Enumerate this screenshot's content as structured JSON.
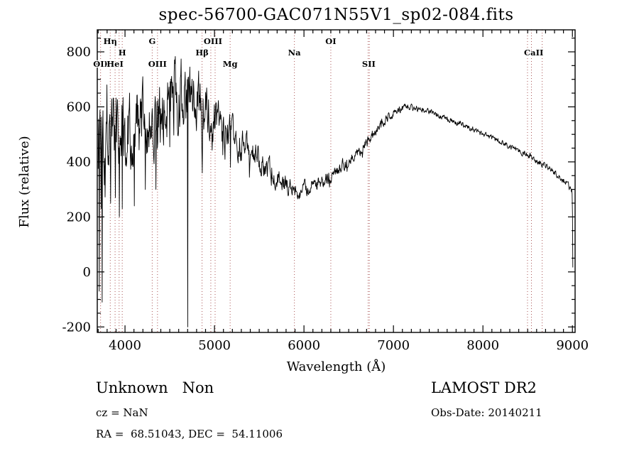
{
  "figure": {
    "title": "spec-56700-GAC071N55V1_sp02-084.fits",
    "xlabel": "Wavelength (Å)",
    "ylabel": "Flux (relative)",
    "annotations": {
      "class_label": "Unknown   Non",
      "survey": "LAMOST DR2",
      "cz": "cz = NaN",
      "obs_date": "Obs-Date: 20140211",
      "radec": "RA =  68.51043, DEC =  54.11006"
    }
  },
  "chart_data": {
    "type": "line",
    "title": "spec-56700-GAC071N55V1_sp02-084.fits",
    "xlabel": "Wavelength (Å)",
    "ylabel": "Flux (relative)",
    "xlim": [
      3690,
      9030
    ],
    "ylim": [
      -220,
      880
    ],
    "x_ticks": [
      4000,
      5000,
      6000,
      7000,
      8000,
      9000
    ],
    "y_ticks": [
      -200,
      0,
      200,
      400,
      600,
      800
    ],
    "x_minor_step": 100,
    "y_minor_step": 50,
    "grid": false,
    "line_color": "#000000",
    "marker_line_color": "#aa5555",
    "wave_start": 3700,
    "wave_end": 9005,
    "samples": 1300,
    "noise_seed": 1337,
    "continuum": [
      [
        3690,
        480
      ],
      [
        3720,
        520
      ],
      [
        3760,
        545
      ],
      [
        3850,
        555
      ],
      [
        3950,
        550
      ],
      [
        4050,
        535
      ],
      [
        4150,
        530
      ],
      [
        4250,
        545
      ],
      [
        4350,
        570
      ],
      [
        4450,
        610
      ],
      [
        4550,
        645
      ],
      [
        4650,
        660
      ],
      [
        4750,
        645
      ],
      [
        4850,
        610
      ],
      [
        4950,
        570
      ],
      [
        5050,
        535
      ],
      [
        5150,
        505
      ],
      [
        5250,
        475
      ],
      [
        5350,
        450
      ],
      [
        5450,
        420
      ],
      [
        5550,
        395
      ],
      [
        5650,
        360
      ],
      [
        5750,
        330
      ],
      [
        5850,
        305
      ],
      [
        5950,
        295
      ],
      [
        6050,
        305
      ],
      [
        6150,
        322
      ],
      [
        6250,
        342
      ],
      [
        6350,
        362
      ],
      [
        6450,
        390
      ],
      [
        6550,
        420
      ],
      [
        6650,
        455
      ],
      [
        6750,
        495
      ],
      [
        6850,
        535
      ],
      [
        6950,
        565
      ],
      [
        7050,
        588
      ],
      [
        7150,
        600
      ],
      [
        7250,
        598
      ],
      [
        7350,
        590
      ],
      [
        7450,
        578
      ],
      [
        7550,
        565
      ],
      [
        7650,
        552
      ],
      [
        7750,
        540
      ],
      [
        7850,
        524
      ],
      [
        7950,
        508
      ],
      [
        8050,
        494
      ],
      [
        8150,
        480
      ],
      [
        8250,
        466
      ],
      [
        8350,
        450
      ],
      [
        8450,
        434
      ],
      [
        8550,
        418
      ],
      [
        8650,
        398
      ],
      [
        8750,
        375
      ],
      [
        8850,
        348
      ],
      [
        8950,
        318
      ],
      [
        8995,
        290
      ],
      [
        9000,
        270
      ],
      [
        9003,
        90
      ],
      [
        9005,
        15
      ]
    ],
    "noise_envelope": [
      [
        3690,
        240
      ],
      [
        3780,
        190
      ],
      [
        3900,
        160
      ],
      [
        4100,
        140
      ],
      [
        4400,
        130
      ],
      [
        4700,
        120
      ],
      [
        4900,
        90
      ],
      [
        5100,
        70
      ],
      [
        5400,
        52
      ],
      [
        5700,
        38
      ],
      [
        5900,
        30
      ],
      [
        6200,
        26
      ],
      [
        6500,
        22
      ],
      [
        6800,
        18
      ],
      [
        7100,
        14
      ],
      [
        7500,
        11
      ],
      [
        8000,
        10
      ],
      [
        8500,
        11
      ],
      [
        8800,
        13
      ],
      [
        9005,
        12
      ]
    ],
    "spikes": [
      [
        3712,
        -70
      ],
      [
        3731,
        230
      ],
      [
        3744,
        -110
      ],
      [
        3838,
        250
      ],
      [
        3892,
        270
      ],
      [
        3936,
        200
      ],
      [
        3971,
        230
      ],
      [
        4104,
        240
      ],
      [
        4345,
        300
      ],
      [
        4699,
        -200
      ],
      [
        4864,
        360
      ],
      [
        5180,
        380
      ]
    ],
    "spectral_lines": [
      {
        "label": "Hη",
        "row": 1,
        "wavelengths": [
          3835
        ]
      },
      {
        "label": "H",
        "row": 2,
        "wavelengths": [
          3969
        ]
      },
      {
        "label": "OII",
        "row": 3,
        "wavelengths": [
          3727
        ]
      },
      {
        "label": "HeI",
        "row": 3,
        "wavelengths": [
          3889
        ]
      },
      {
        "label": "",
        "row": 3,
        "wavelengths": [
          3934
        ]
      },
      {
        "label": "G",
        "row": 1,
        "wavelengths": [
          4304
        ]
      },
      {
        "label": "OIII",
        "row": 3,
        "wavelengths": [
          4363
        ]
      },
      {
        "label": "Hβ",
        "row": 2,
        "wavelengths": [
          4861
        ]
      },
      {
        "label": "OIII",
        "row": 1,
        "wavelengths": [
          4959,
          5007
        ]
      },
      {
        "label": "Mg",
        "row": 3,
        "wavelengths": [
          5175
        ]
      },
      {
        "label": "Na",
        "row": 2,
        "wavelengths": [
          5893
        ]
      },
      {
        "label": "OI",
        "row": 1,
        "wavelengths": [
          6300
        ]
      },
      {
        "label": "SII",
        "row": 3,
        "wavelengths": [
          6717,
          6731
        ]
      },
      {
        "label": "CaII",
        "row": 2,
        "wavelengths": [
          8498,
          8542,
          8662
        ]
      }
    ]
  }
}
